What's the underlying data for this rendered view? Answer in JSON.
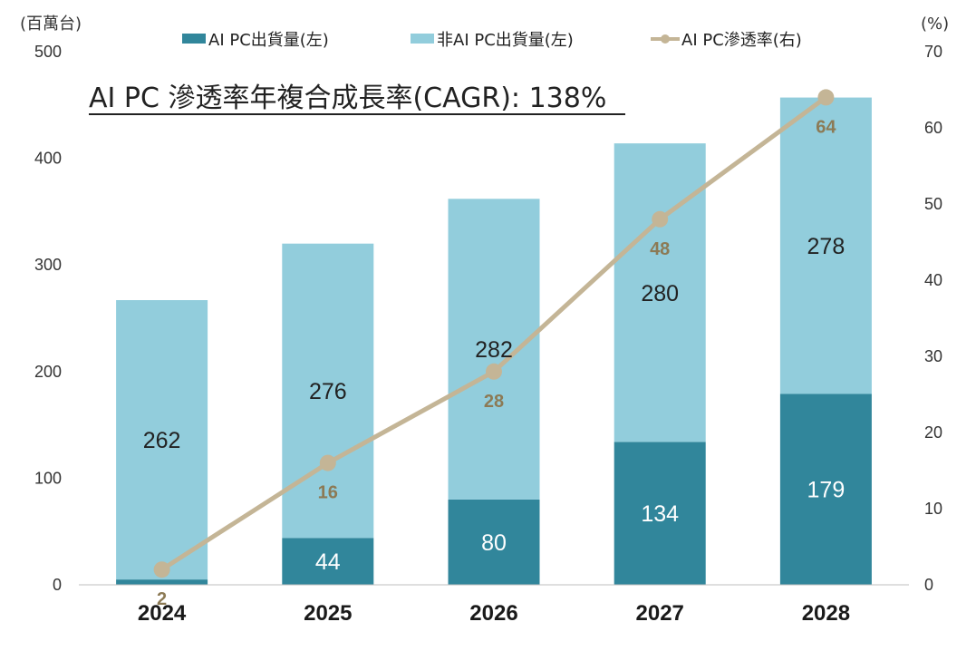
{
  "chart_data": {
    "type": "bar",
    "stacked": true,
    "title": "AI PC 滲透率年複合成長率(CAGR): 138%",
    "categories": [
      "2024",
      "2025",
      "2026",
      "2027",
      "2028"
    ],
    "y_left_unit": "(百萬台)",
    "y_right_unit": "(%)",
    "y_left_ticks": [
      "0",
      "100",
      "200",
      "300",
      "400",
      "500"
    ],
    "y_right_ticks": [
      "0",
      "10",
      "20",
      "30",
      "40",
      "50",
      "60",
      "70"
    ],
    "ylim_left": [
      0,
      500
    ],
    "ylim_right": [
      0,
      70
    ],
    "grid": false,
    "legend_position": "top",
    "series": [
      {
        "name": "AI PC出貨量(左)",
        "type": "bar",
        "axis": "left",
        "color": "#31869b",
        "values": [
          5,
          44,
          80,
          134,
          179
        ],
        "labels": [
          "",
          "44",
          "80",
          "134",
          "179"
        ]
      },
      {
        "name": "非AI PC出貨量(左)",
        "type": "bar",
        "axis": "left",
        "color": "#92cddc",
        "values": [
          262,
          276,
          282,
          280,
          278
        ],
        "labels": [
          "262",
          "276",
          "282",
          "280",
          "278"
        ]
      },
      {
        "name": "AI PC滲透率(右)",
        "type": "line",
        "axis": "right",
        "color": "#c4b596",
        "values": [
          2,
          16,
          28,
          48,
          64
        ],
        "labels": [
          "2",
          "16",
          "28",
          "48",
          "64"
        ]
      }
    ]
  }
}
